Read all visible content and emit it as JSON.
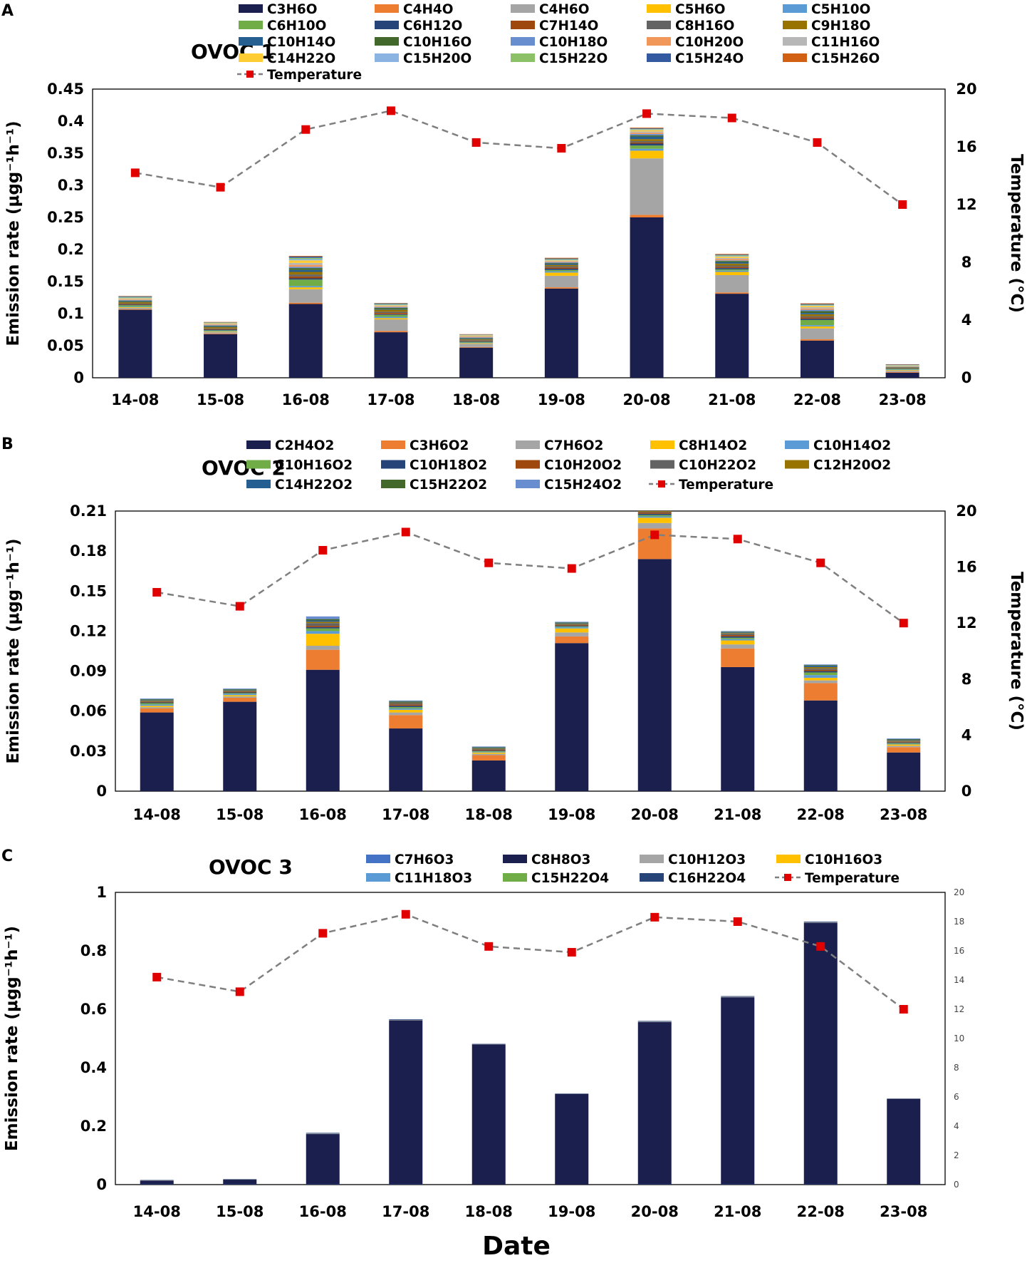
{
  "x_axis_label": "Date",
  "chart_data": [
    {
      "type": "bar",
      "panel": "A",
      "title": "OVOC 1",
      "stacked": true,
      "ylabel": "Emission rate (μgg⁻¹h⁻¹)",
      "y2label": "Temperature (°C)",
      "categories": [
        "14-08",
        "15-08",
        "16-08",
        "17-08",
        "18-08",
        "19-08",
        "20-08",
        "21-08",
        "22-08",
        "23-08"
      ],
      "ylim": [
        0,
        0.45
      ],
      "yticks": [
        "0",
        "0.05",
        "0.1",
        "0.15",
        "0.2",
        "0.25",
        "0.3",
        "0.35",
        "0.4",
        "0.45"
      ],
      "y2lim": [
        0,
        20
      ],
      "y2ticks": [
        "0",
        "4",
        "8",
        "12",
        "16",
        "20"
      ],
      "series": [
        {
          "name": "C3H6O",
          "color": "#1a1f4e",
          "values": [
            0.106,
            0.068,
            0.115,
            0.071,
            0.047,
            0.139,
            0.25,
            0.131,
            0.058,
            0.008
          ]
        },
        {
          "name": "C4H4O",
          "color": "#ed7d31",
          "values": [
            0.001,
            0.001,
            0.002,
            0.002,
            0.001,
            0.002,
            0.004,
            0.002,
            0.002,
            0.001
          ]
        },
        {
          "name": "C4H6O",
          "color": "#a5a5a5",
          "values": [
            0.002,
            0.002,
            0.021,
            0.018,
            0.005,
            0.018,
            0.088,
            0.027,
            0.017,
            0.002
          ]
        },
        {
          "name": "C5H6O",
          "color": "#ffc000",
          "values": [
            0.001,
            0.001,
            0.003,
            0.002,
            0.001,
            0.005,
            0.012,
            0.005,
            0.003,
            0.001
          ]
        },
        {
          "name": "C5H10O",
          "color": "#5b9bd5",
          "values": [
            0.001,
            0.001,
            0.002,
            0.002,
            0.001,
            0.002,
            0.003,
            0.002,
            0.002,
            0.001
          ]
        },
        {
          "name": "C6H10O",
          "color": "#70ad47",
          "values": [
            0.002,
            0.001,
            0.01,
            0.003,
            0.001,
            0.002,
            0.005,
            0.002,
            0.008,
            0.001
          ]
        },
        {
          "name": "C6H12O",
          "color": "#264478",
          "values": [
            0.001,
            0.001,
            0.002,
            0.001,
            0.001,
            0.002,
            0.003,
            0.002,
            0.002,
            0.0005
          ]
        },
        {
          "name": "C7H14O",
          "color": "#9e480e",
          "values": [
            0.001,
            0.001,
            0.003,
            0.002,
            0.001,
            0.002,
            0.002,
            0.002,
            0.002,
            0.0005
          ]
        },
        {
          "name": "C8H16O",
          "color": "#636363",
          "values": [
            0.001,
            0.001,
            0.003,
            0.002,
            0.001,
            0.002,
            0.002,
            0.002,
            0.002,
            0.0005
          ]
        },
        {
          "name": "C9H18O",
          "color": "#997300",
          "values": [
            0.002,
            0.002,
            0.004,
            0.003,
            0.001,
            0.002,
            0.003,
            0.003,
            0.003,
            0.0005
          ]
        },
        {
          "name": "C10H14O",
          "color": "#255e91",
          "values": [
            0.001,
            0.001,
            0.003,
            0.001,
            0.001,
            0.002,
            0.004,
            0.002,
            0.002,
            0.0005
          ]
        },
        {
          "name": "C10H16O",
          "color": "#43682b",
          "values": [
            0.001,
            0.001,
            0.003,
            0.002,
            0.001,
            0.001,
            0.002,
            0.002,
            0.003,
            0.0005
          ]
        },
        {
          "name": "C10H18O",
          "color": "#698ed0",
          "values": [
            0.001,
            0.001,
            0.002,
            0.001,
            0.001,
            0.001,
            0.002,
            0.001,
            0.002,
            0.0005
          ]
        },
        {
          "name": "C10H20O",
          "color": "#f1975a",
          "values": [
            0.001,
            0.001,
            0.003,
            0.001,
            0.001,
            0.001,
            0.002,
            0.002,
            0.002,
            0.0005
          ]
        },
        {
          "name": "C11H16O",
          "color": "#b7b7b7",
          "values": [
            0.001,
            0.001,
            0.003,
            0.001,
            0.001,
            0.001,
            0.002,
            0.002,
            0.002,
            0.0005
          ]
        },
        {
          "name": "C14H22O",
          "color": "#ffcd33",
          "values": [
            0.001,
            0.001,
            0.004,
            0.001,
            0.001,
            0.001,
            0.002,
            0.002,
            0.002,
            0.0005
          ]
        },
        {
          "name": "C15H20O",
          "color": "#8cb4e2",
          "values": [
            0.001,
            0.0005,
            0.002,
            0.001,
            0.0005,
            0.001,
            0.001,
            0.001,
            0.001,
            0.0005
          ]
        },
        {
          "name": "C15H22O",
          "color": "#8cc168",
          "values": [
            0.001,
            0.0005,
            0.002,
            0.001,
            0.0005,
            0.001,
            0.001,
            0.001,
            0.001,
            0.0005
          ]
        },
        {
          "name": "C15H24O",
          "color": "#335aa1",
          "values": [
            0.001,
            0.0005,
            0.002,
            0.001,
            0.0005,
            0.001,
            0.001,
            0.001,
            0.001,
            0.0005
          ]
        },
        {
          "name": "C15H26O",
          "color": "#d26012",
          "values": [
            0.0005,
            0.0005,
            0.001,
            0.0005,
            0.0005,
            0.001,
            0.001,
            0.001,
            0.001,
            0.0005
          ]
        }
      ],
      "temperature": {
        "name": "Temperature",
        "color": "#e00000",
        "line_color": "#7f7f7f",
        "values": [
          14.2,
          13.2,
          17.2,
          18.5,
          16.3,
          15.9,
          18.3,
          18.0,
          16.3,
          12.0
        ]
      }
    },
    {
      "type": "bar",
      "panel": "B",
      "title": "OVOC 2",
      "stacked": true,
      "ylabel": "Emission rate (μgg⁻¹h⁻¹)",
      "y2label": "Temperature (°C)",
      "categories": [
        "14-08",
        "15-08",
        "16-08",
        "17-08",
        "18-08",
        "19-08",
        "20-08",
        "21-08",
        "22-08",
        "23-08"
      ],
      "ylim": [
        0,
        0.21
      ],
      "yticks": [
        "0",
        "0.03",
        "0.06",
        "0.09",
        "0.12",
        "0.15",
        "0.18",
        "0.21"
      ],
      "y2lim": [
        0,
        20
      ],
      "y2ticks": [
        "0",
        "4",
        "8",
        "12",
        "16",
        "20"
      ],
      "series": [
        {
          "name": "C2H4O2",
          "color": "#1a1f4e",
          "values": [
            0.059,
            0.067,
            0.091,
            0.047,
            0.023,
            0.111,
            0.174,
            0.093,
            0.068,
            0.029
          ]
        },
        {
          "name": "C3H6O2",
          "color": "#ed7d31",
          "values": [
            0.003,
            0.003,
            0.015,
            0.01,
            0.004,
            0.005,
            0.023,
            0.014,
            0.013,
            0.004
          ]
        },
        {
          "name": "C7H6O2",
          "color": "#a5a5a5",
          "values": [
            0.001,
            0.001,
            0.003,
            0.002,
            0.001,
            0.003,
            0.004,
            0.003,
            0.002,
            0.001
          ]
        },
        {
          "name": "C8H14O2",
          "color": "#ffc000",
          "values": [
            0.001,
            0.001,
            0.009,
            0.002,
            0.001,
            0.003,
            0.004,
            0.003,
            0.002,
            0.001
          ]
        },
        {
          "name": "C10H14O2",
          "color": "#5b9bd5",
          "values": [
            0.001,
            0.001,
            0.002,
            0.001,
            0.0005,
            0.001,
            0.001,
            0.001,
            0.002,
            0.0005
          ]
        },
        {
          "name": "C10H16O2",
          "color": "#70ad47",
          "values": [
            0.001,
            0.0005,
            0.002,
            0.001,
            0.0005,
            0.0005,
            0.001,
            0.001,
            0.002,
            0.0005
          ]
        },
        {
          "name": "C10H18O2",
          "color": "#264478",
          "values": [
            0.0005,
            0.0005,
            0.001,
            0.001,
            0.0005,
            0.0005,
            0.001,
            0.001,
            0.001,
            0.0005
          ]
        },
        {
          "name": "C10H20O2",
          "color": "#9e480e",
          "values": [
            0.0005,
            0.0005,
            0.001,
            0.001,
            0.0005,
            0.0005,
            0.001,
            0.001,
            0.001,
            0.0005
          ]
        },
        {
          "name": "C10H22O2",
          "color": "#636363",
          "values": [
            0.0005,
            0.0005,
            0.002,
            0.001,
            0.0005,
            0.0005,
            0.0005,
            0.001,
            0.001,
            0.0005
          ]
        },
        {
          "name": "C12H20O2",
          "color": "#997300",
          "values": [
            0.0005,
            0.0005,
            0.001,
            0.0005,
            0.0005,
            0.0005,
            0.0005,
            0.0005,
            0.001,
            0.0005
          ]
        },
        {
          "name": "C14H22O2",
          "color": "#255e91",
          "values": [
            0.0005,
            0.0005,
            0.001,
            0.0005,
            0.0005,
            0.0005,
            0.0005,
            0.0005,
            0.001,
            0.0005
          ]
        },
        {
          "name": "C15H22O2",
          "color": "#43682b",
          "values": [
            0.0005,
            0.0005,
            0.001,
            0.0005,
            0.0005,
            0.0005,
            0.0005,
            0.0005,
            0.0005,
            0.0005
          ]
        },
        {
          "name": "C15H24O2",
          "color": "#698ed0",
          "values": [
            0.0005,
            0.0005,
            0.002,
            0.0005,
            0.0005,
            0.0005,
            0.0005,
            0.0005,
            0.0005,
            0.0005
          ]
        }
      ],
      "temperature": {
        "name": "Temperature",
        "color": "#e00000",
        "line_color": "#7f7f7f",
        "values": [
          14.2,
          13.2,
          17.2,
          18.5,
          16.3,
          15.9,
          18.3,
          18.0,
          16.3,
          12.0
        ]
      }
    },
    {
      "type": "bar",
      "panel": "C",
      "title": "OVOC 3",
      "stacked": true,
      "ylabel": "Emission rate (μgg⁻¹h⁻¹)",
      "y2label": "",
      "categories": [
        "14-08",
        "15-08",
        "16-08",
        "17-08",
        "18-08",
        "19-08",
        "20-08",
        "21-08",
        "22-08",
        "23-08"
      ],
      "ylim": [
        0,
        1
      ],
      "yticks": [
        "0",
        "0.2",
        "0.4",
        "0.6",
        "0.8",
        "1"
      ],
      "y2lim": [
        0,
        20
      ],
      "y2ticks": [
        "0",
        "2",
        "4",
        "6",
        "8",
        "10",
        "12",
        "14",
        "16",
        "18",
        "20"
      ],
      "series": [
        {
          "name": "C7H6O3",
          "color": "#4472c4",
          "values": [
            0.001,
            0.001,
            0.001,
            0.001,
            0.0,
            0.0,
            0.001,
            0.001,
            0.001,
            0.0
          ]
        },
        {
          "name": "C8H8O3",
          "color": "#1a1f4e",
          "values": [
            0.013,
            0.016,
            0.172,
            0.561,
            0.48,
            0.31,
            0.555,
            0.64,
            0.895,
            0.293
          ]
        },
        {
          "name": "C10H12O3",
          "color": "#a5a5a5",
          "values": [
            0.001,
            0.001,
            0.002,
            0.002,
            0.001,
            0.001,
            0.002,
            0.002,
            0.002,
            0.001
          ]
        },
        {
          "name": "C10H16O3",
          "color": "#ffc000",
          "values": [
            0.0,
            0.0,
            0.0,
            0.0,
            0.0,
            0.0,
            0.0,
            0.0,
            0.0,
            0.0
          ]
        },
        {
          "name": "C11H18O3",
          "color": "#5b9bd5",
          "values": [
            0.0,
            0.0,
            0.0,
            0.0,
            0.0,
            0.0,
            0.0,
            0.0,
            0.0,
            0.0
          ]
        },
        {
          "name": "C15H22O4",
          "color": "#70ad47",
          "values": [
            0.0,
            0.0,
            0.0,
            0.0,
            0.0,
            0.0,
            0.0,
            0.0,
            0.0,
            0.0
          ]
        },
        {
          "name": "C16H22O4",
          "color": "#264478",
          "values": [
            0.001,
            0.001,
            0.002,
            0.002,
            0.001,
            0.001,
            0.002,
            0.002,
            0.002,
            0.001
          ]
        }
      ],
      "temperature": {
        "name": "Temperature",
        "color": "#e00000",
        "line_color": "#7f7f7f",
        "values": [
          14.2,
          13.2,
          17.2,
          18.5,
          16.3,
          15.9,
          18.3,
          18.0,
          16.3,
          12.0
        ]
      }
    }
  ]
}
